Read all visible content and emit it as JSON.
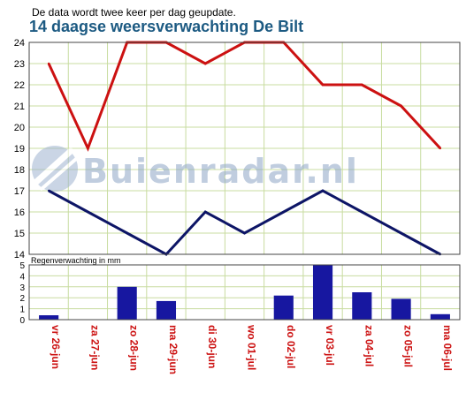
{
  "header": {
    "note": "De data wordt twee keer per dag geupdate.",
    "title": "14 daagse weersverwachting De Bilt"
  },
  "watermark": {
    "text": "Buienradar.nl",
    "icon": "buienradar-logo-icon"
  },
  "colors": {
    "max_line": "#cc1111",
    "min_line": "#0d1566",
    "bars": "#1717a0",
    "date_labels": "#cc1111",
    "grid": "#c8dca0"
  },
  "chart_data": [
    {
      "type": "line",
      "title": "",
      "categories": [
        "vr 26-jun",
        "za 27-jun",
        "zo 28-jun",
        "ma 29-jun",
        "di 30-jun",
        "wo 01-jul",
        "do 02-jul",
        "vr 03-jul",
        "za 04-jul",
        "zo 05-jul",
        "ma 06-jul"
      ],
      "series": [
        {
          "values": [
            23,
            19,
            24,
            24,
            23,
            24,
            24,
            22,
            22,
            21,
            19
          ]
        },
        {
          "values": [
            17,
            16,
            15,
            14,
            16,
            15,
            16,
            17,
            16,
            15,
            14
          ]
        }
      ],
      "y_ticks": [
        14,
        15,
        16,
        17,
        18,
        19,
        20,
        21,
        22,
        23,
        24
      ],
      "ylim": [
        14,
        24
      ],
      "grid": true
    },
    {
      "type": "bar",
      "title": "Regenverwachting in mm",
      "categories": [
        "vr 26-jun",
        "za 27-jun",
        "zo 28-jun",
        "ma 29-jun",
        "di 30-jun",
        "wo 01-jul",
        "do 02-jul",
        "vr 03-jul",
        "za 04-jul",
        "zo 05-jul",
        "ma 06-jul"
      ],
      "values": [
        0.4,
        0,
        3.0,
        1.7,
        0,
        0,
        2.2,
        5.0,
        2.5,
        1.9,
        0.5
      ],
      "y_ticks": [
        0,
        1,
        2,
        3,
        4,
        5
      ],
      "ylim": [
        0,
        5
      ],
      "grid": true
    }
  ]
}
